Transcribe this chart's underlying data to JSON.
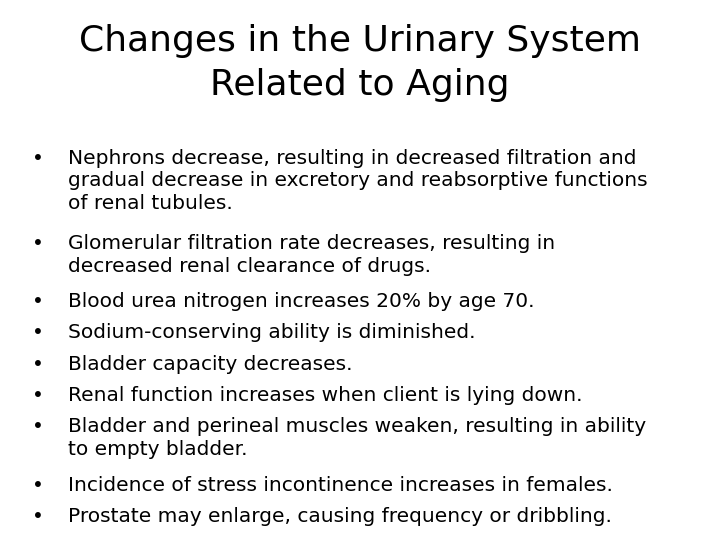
{
  "title_line1": "Changes in the Urinary System",
  "title_line2": "Related to Aging",
  "background_color": "#ffffff",
  "title_color": "#000000",
  "text_color": "#000000",
  "title_fontsize": 26,
  "body_fontsize": 14.5,
  "bullet_char": "•",
  "bullet_points": [
    "Nephrons decrease, resulting in decreased filtration and\ngradual decrease in excretory and reabsorptive functions\nof renal tubules.",
    "Glomerular filtration rate decreases, resulting in\ndecreased renal clearance of drugs.",
    "Blood urea nitrogen increases 20% by age 70.",
    "Sodium-conserving ability is diminished.",
    "Bladder capacity decreases.",
    "Renal function increases when client is lying down.",
    "Bladder and perineal muscles weaken, resulting in ability\nto empty bladder.",
    "Incidence of stress incontinence increases in females.",
    "Prostate may enlarge, causing frequency or dribbling."
  ],
  "figwidth": 7.2,
  "figheight": 5.4,
  "dpi": 100
}
